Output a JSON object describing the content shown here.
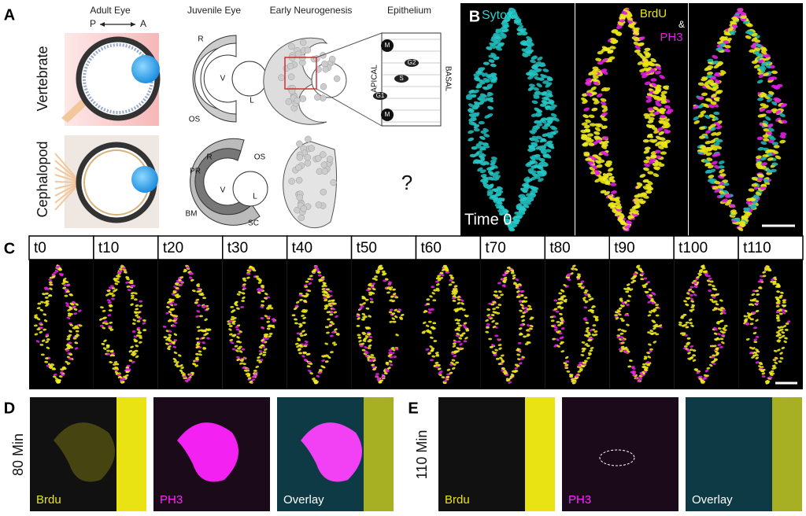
{
  "panel_a": {
    "label": "A",
    "columns": [
      "Adult Eye",
      "Juvenile Eye",
      "Early Neurogenesis",
      "Epithelium"
    ],
    "axis": {
      "posterior": "P",
      "anterior": "A"
    },
    "rows": [
      "Vertebrate",
      "Cephalopod"
    ],
    "vertebrate_juvenile_labels": [
      "R",
      "V",
      "L",
      "OS"
    ],
    "cephalopod_juvenile_labels": [
      "PR",
      "R",
      "OS",
      "V",
      "L",
      "BM",
      "SC"
    ],
    "epithelium_labels": [
      "M",
      "G2",
      "S",
      "G1",
      "M"
    ],
    "epithelium_sides": [
      "APICAL",
      "BASAL"
    ],
    "unknown": "?"
  },
  "panel_b": {
    "label": "B",
    "stains": [
      "Sytox",
      "BrdU",
      "&",
      "PH3"
    ],
    "time": "Time 0"
  },
  "panel_c": {
    "label": "C",
    "timepoints": [
      "t0",
      "t10",
      "t20",
      "t30",
      "t40",
      "t50",
      "t60",
      "t70",
      "t80",
      "t90",
      "t100",
      "t110"
    ]
  },
  "panel_d": {
    "label": "D",
    "time": "80 Min",
    "channels": [
      "Brdu",
      "PH3",
      "Overlay"
    ]
  },
  "panel_e": {
    "label": "E",
    "time": "110 Min",
    "channels": [
      "Brdu",
      "PH3",
      "Overlay"
    ]
  }
}
